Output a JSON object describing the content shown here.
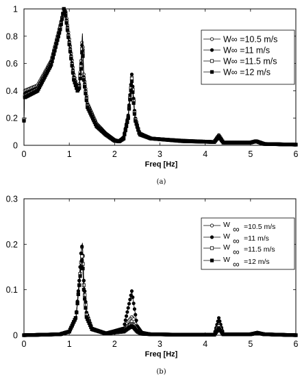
{
  "chart_data": [
    {
      "panel": "(a)",
      "type": "line",
      "xlabel": "Freq [Hz]",
      "ylabel": "",
      "xlim": [
        0,
        6
      ],
      "ylim": [
        0,
        1
      ],
      "xticks": [
        "0",
        "1",
        "2",
        "3",
        "4",
        "5",
        "6"
      ],
      "yticks": [
        "0",
        "0.2",
        "0.4",
        "0.6",
        "0.8",
        "1"
      ],
      "grid": false,
      "legend_position": "top-right",
      "legend_style": "inline",
      "series": [
        {
          "name": "W∞ =10.5 m/s",
          "marker": "open-circle",
          "x": [
            0,
            0.01,
            0.3,
            0.6,
            0.8,
            0.88,
            0.92,
            1.0,
            1.1,
            1.18,
            1.22,
            1.26,
            1.29,
            1.32,
            1.4,
            1.6,
            1.8,
            2.0,
            2.1,
            2.2,
            2.3,
            2.38,
            2.45,
            2.55,
            2.8,
            3.5,
            4.2,
            4.3,
            4.4,
            5.0,
            5.12,
            5.3,
            6.0
          ],
          "y": [
            0.19,
            0.4,
            0.44,
            0.62,
            0.88,
            1.0,
            0.98,
            0.78,
            0.52,
            0.42,
            0.45,
            0.62,
            0.82,
            0.52,
            0.31,
            0.16,
            0.09,
            0.04,
            0.03,
            0.06,
            0.21,
            0.5,
            0.2,
            0.09,
            0.05,
            0.035,
            0.025,
            0.07,
            0.02,
            0.02,
            0.03,
            0.01,
            0.005
          ]
        },
        {
          "name": "W∞ =11 m/s",
          "marker": "filled-circle",
          "x": [
            0,
            0.01,
            0.3,
            0.6,
            0.8,
            0.88,
            0.92,
            1.0,
            1.1,
            1.18,
            1.22,
            1.26,
            1.29,
            1.32,
            1.4,
            1.6,
            1.8,
            2.0,
            2.1,
            2.2,
            2.3,
            2.38,
            2.45,
            2.55,
            2.8,
            3.5,
            4.2,
            4.3,
            4.4,
            5.0,
            5.12,
            5.3,
            6.0
          ],
          "y": [
            0.18,
            0.38,
            0.42,
            0.61,
            0.87,
            1.0,
            0.97,
            0.76,
            0.5,
            0.41,
            0.44,
            0.6,
            0.8,
            0.5,
            0.3,
            0.15,
            0.085,
            0.038,
            0.03,
            0.06,
            0.22,
            0.52,
            0.21,
            0.09,
            0.05,
            0.033,
            0.025,
            0.075,
            0.02,
            0.02,
            0.03,
            0.01,
            0.005
          ]
        },
        {
          "name": "W∞ =11.5 m/s",
          "marker": "open-square",
          "x": [
            0,
            0.01,
            0.3,
            0.6,
            0.8,
            0.88,
            0.92,
            1.0,
            1.1,
            1.18,
            1.22,
            1.26,
            1.29,
            1.32,
            1.4,
            1.6,
            1.8,
            2.0,
            2.1,
            2.2,
            2.3,
            2.38,
            2.45,
            2.55,
            2.8,
            3.5,
            4.2,
            4.3,
            4.4,
            5.0,
            5.12,
            5.3,
            6.0
          ],
          "y": [
            0.19,
            0.36,
            0.41,
            0.6,
            0.86,
            1.0,
            0.96,
            0.75,
            0.49,
            0.4,
            0.43,
            0.58,
            0.77,
            0.49,
            0.29,
            0.15,
            0.08,
            0.035,
            0.03,
            0.05,
            0.2,
            0.49,
            0.2,
            0.085,
            0.05,
            0.032,
            0.024,
            0.07,
            0.02,
            0.02,
            0.03,
            0.01,
            0.005
          ]
        },
        {
          "name": "W∞ =12 m/s",
          "marker": "filled-square",
          "x": [
            0,
            0.01,
            0.3,
            0.6,
            0.8,
            0.88,
            0.92,
            1.0,
            1.1,
            1.18,
            1.22,
            1.26,
            1.29,
            1.32,
            1.4,
            1.6,
            1.8,
            2.0,
            2.1,
            2.2,
            2.3,
            2.38,
            2.45,
            2.55,
            2.8,
            3.5,
            4.2,
            4.3,
            4.4,
            5.0,
            5.12,
            5.3,
            6.0
          ],
          "y": [
            0.18,
            0.35,
            0.4,
            0.59,
            0.85,
            1.0,
            0.95,
            0.74,
            0.48,
            0.4,
            0.42,
            0.56,
            0.74,
            0.48,
            0.28,
            0.14,
            0.08,
            0.033,
            0.028,
            0.05,
            0.2,
            0.47,
            0.19,
            0.08,
            0.05,
            0.03,
            0.024,
            0.065,
            0.02,
            0.02,
            0.03,
            0.01,
            0.005
          ]
        }
      ]
    },
    {
      "panel": "(b)",
      "type": "line",
      "xlabel": "Freq [Hz]",
      "ylabel": "",
      "xlim": [
        0,
        6
      ],
      "ylim": [
        0,
        0.3
      ],
      "xticks": [
        "0",
        "1",
        "2",
        "3",
        "4",
        "5",
        "6"
      ],
      "yticks": [
        "0",
        "0.1",
        "0.2",
        "0.3"
      ],
      "grid": false,
      "legend_position": "top-right",
      "legend_style": "subscript",
      "series": [
        {
          "name": "=10.5 m/s",
          "symbol_text": "W",
          "subscript": "∞",
          "marker": "open-circle",
          "x": [
            0,
            0.8,
            1.0,
            1.15,
            1.22,
            1.26,
            1.29,
            1.32,
            1.38,
            1.5,
            1.8,
            2.2,
            2.3,
            2.38,
            2.42,
            2.5,
            2.6,
            2.8,
            3.5,
            4.2,
            4.3,
            4.4,
            5.0,
            5.15,
            5.3,
            6.0
          ],
          "y": [
            0,
            0.002,
            0.008,
            0.04,
            0.12,
            0.18,
            0.2,
            0.12,
            0.05,
            0.015,
            0.004,
            0.01,
            0.03,
            0.04,
            0.035,
            0.015,
            0.005,
            0.002,
            0.001,
            0.001,
            0.03,
            0.002,
            0.002,
            0.006,
            0.002,
            0
          ]
        },
        {
          "name": "=11 m/s",
          "symbol_text": "W",
          "subscript": "∞",
          "marker": "filled-circle",
          "x": [
            0,
            0.8,
            1.0,
            1.15,
            1.22,
            1.26,
            1.29,
            1.32,
            1.38,
            1.5,
            1.8,
            2.2,
            2.3,
            2.38,
            2.42,
            2.5,
            2.6,
            2.8,
            3.5,
            4.2,
            4.3,
            4.4,
            5.0,
            5.15,
            5.3,
            6.0
          ],
          "y": [
            0,
            0.002,
            0.008,
            0.04,
            0.12,
            0.18,
            0.203,
            0.12,
            0.05,
            0.015,
            0.004,
            0.015,
            0.06,
            0.097,
            0.07,
            0.02,
            0.006,
            0.002,
            0.001,
            0.001,
            0.038,
            0.002,
            0.002,
            0.006,
            0.002,
            0
          ]
        },
        {
          "name": "=11.5 m/s",
          "symbol_text": "W",
          "subscript": "∞",
          "marker": "open-square",
          "x": [
            0,
            0.8,
            1.0,
            1.15,
            1.22,
            1.26,
            1.29,
            1.32,
            1.38,
            1.5,
            1.8,
            2.2,
            2.3,
            2.38,
            2.42,
            2.5,
            2.6,
            2.8,
            3.5,
            4.2,
            4.3,
            4.4,
            5.0,
            5.15,
            5.3,
            6.0
          ],
          "y": [
            0,
            0.002,
            0.008,
            0.04,
            0.11,
            0.16,
            0.18,
            0.11,
            0.045,
            0.014,
            0.004,
            0.008,
            0.02,
            0.025,
            0.022,
            0.01,
            0.004,
            0.002,
            0.001,
            0.001,
            0.02,
            0.002,
            0.002,
            0.005,
            0.002,
            0
          ]
        },
        {
          "name": "=12 m/s",
          "symbol_text": "W",
          "subscript": "∞",
          "marker": "filled-square",
          "x": [
            0,
            0.8,
            1.0,
            1.15,
            1.22,
            1.26,
            1.29,
            1.32,
            1.38,
            1.5,
            1.8,
            2.2,
            2.3,
            2.38,
            2.42,
            2.5,
            2.6,
            2.8,
            3.5,
            4.2,
            4.3,
            4.4,
            5.0,
            5.15,
            5.3,
            6.0
          ],
          "y": [
            0,
            0.002,
            0.008,
            0.04,
            0.11,
            0.15,
            0.17,
            0.1,
            0.04,
            0.013,
            0.004,
            0.008,
            0.015,
            0.02,
            0.017,
            0.008,
            0.003,
            0.002,
            0.001,
            0.001,
            0.015,
            0.002,
            0.002,
            0.005,
            0.002,
            0
          ]
        }
      ]
    }
  ]
}
